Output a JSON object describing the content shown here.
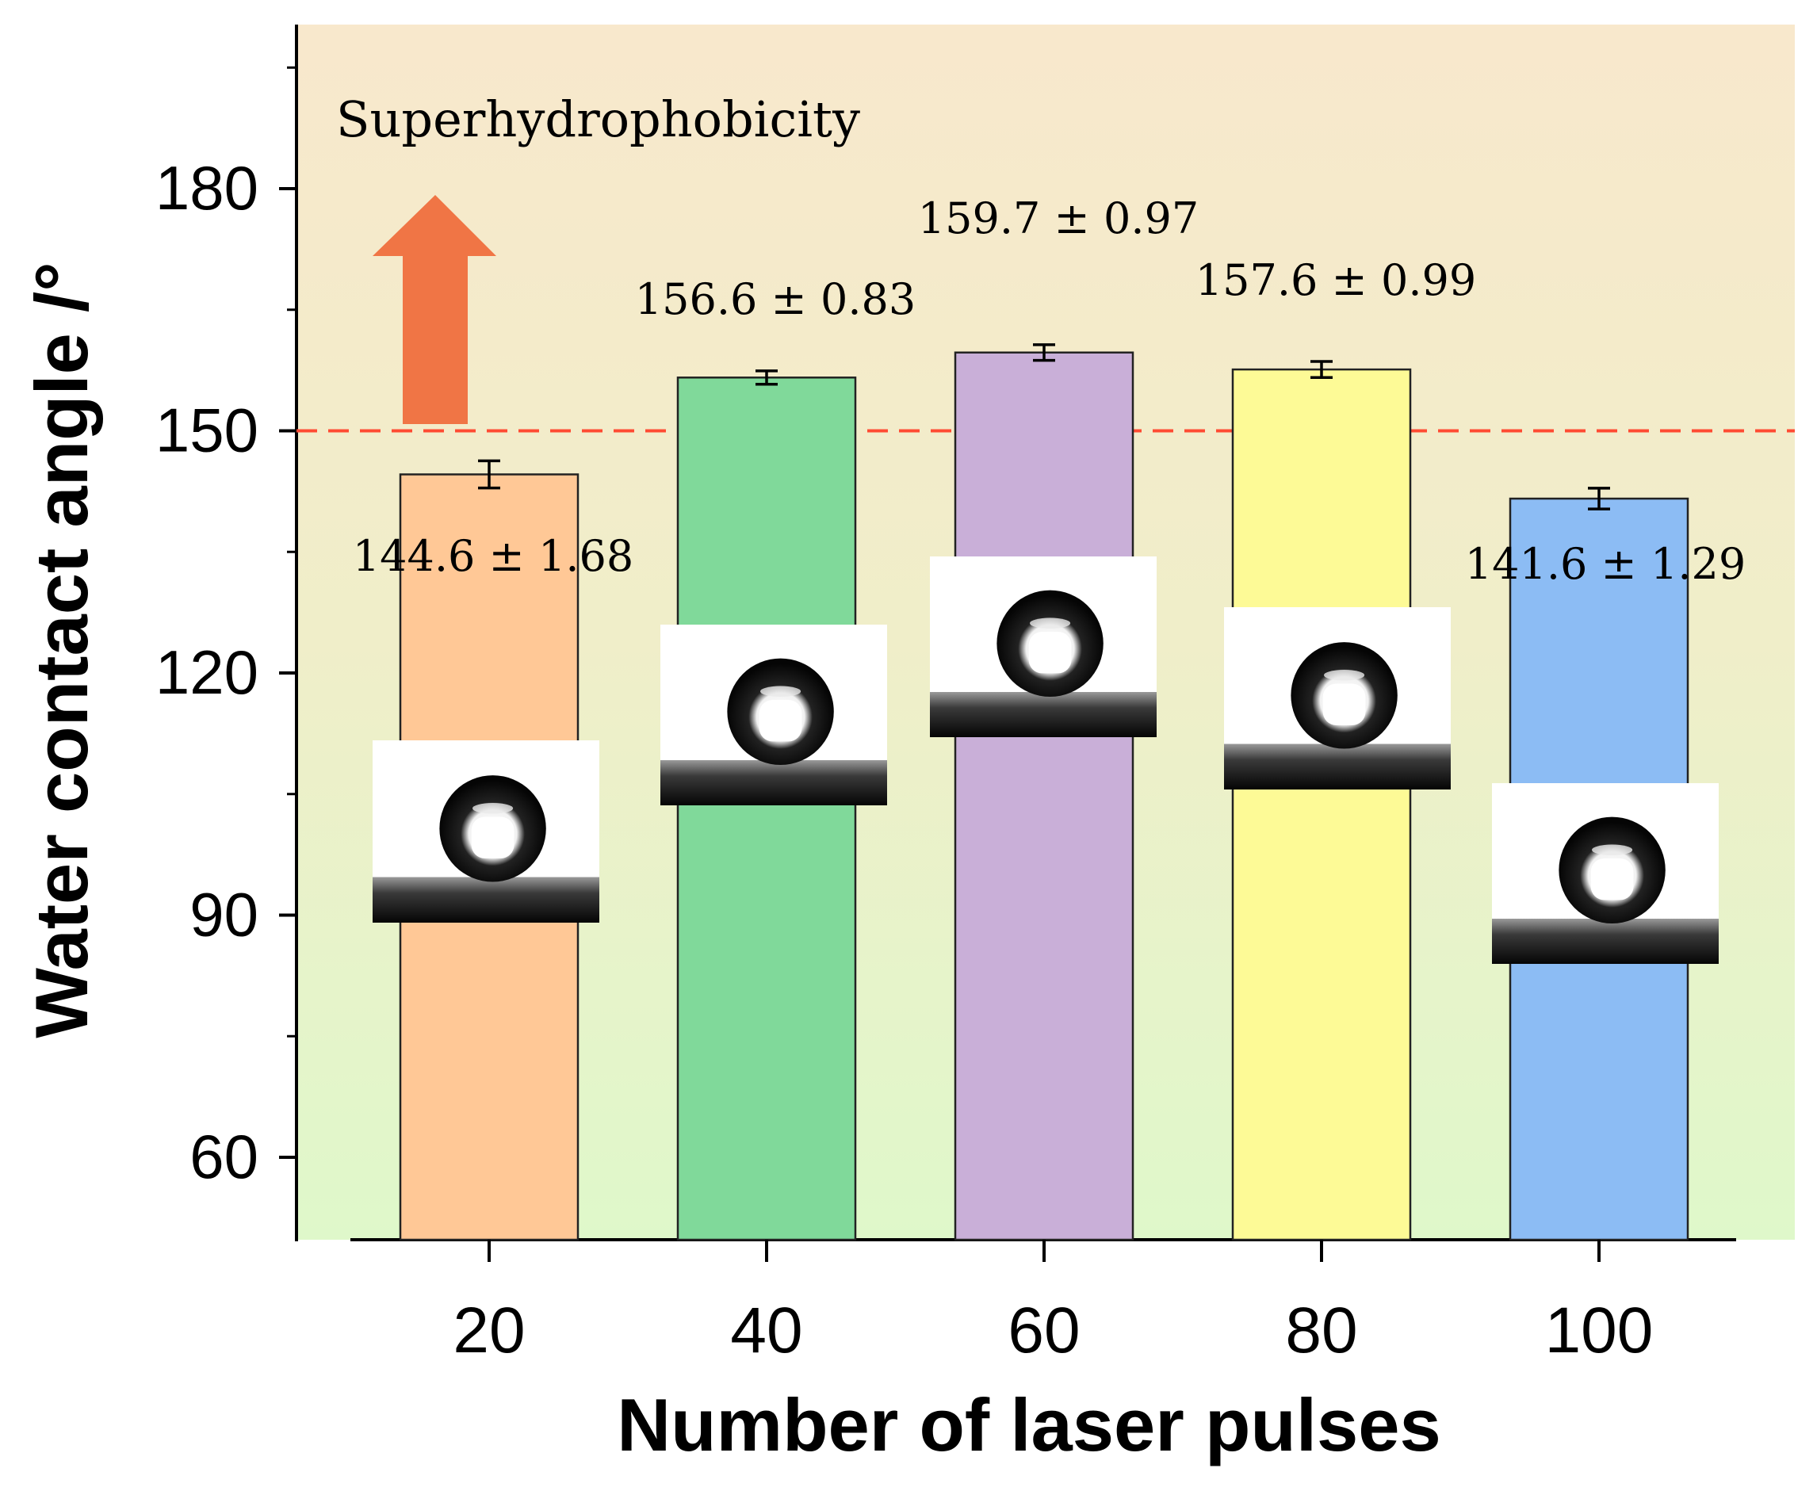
{
  "chart_data": {
    "type": "bar",
    "title": "",
    "xlabel": "Number of laser pulses",
    "ylabel": "Water contact angle /°",
    "categories": [
      "20",
      "40",
      "60",
      "80",
      "100"
    ],
    "values": [
      144.6,
      156.6,
      159.7,
      157.6,
      141.6
    ],
    "errors": [
      1.68,
      0.83,
      0.97,
      0.99,
      1.29
    ],
    "value_labels": [
      "144.6 ± 1.68",
      "156.6 ± 0.83",
      "159.7 ± 0.97",
      "157.6 ± 0.99",
      "141.6 ± 1.29"
    ],
    "ylim": [
      50,
      200
    ],
    "yticks": [
      60,
      90,
      120,
      150,
      180
    ],
    "yticks_minor": [
      75,
      105,
      135,
      165,
      195
    ],
    "threshold": {
      "value": 150,
      "color": "#ff4b33"
    },
    "annotation": "Superhydrophobicity",
    "bar_colors": [
      "#ffc896",
      "#80d99a",
      "#c9afd8",
      "#fdfa96",
      "#8cbcf4"
    ],
    "background_gradient": [
      "#f8e8cc",
      "#f0eec9",
      "#dff8ca"
    ],
    "arrow_color": "#f07545"
  }
}
